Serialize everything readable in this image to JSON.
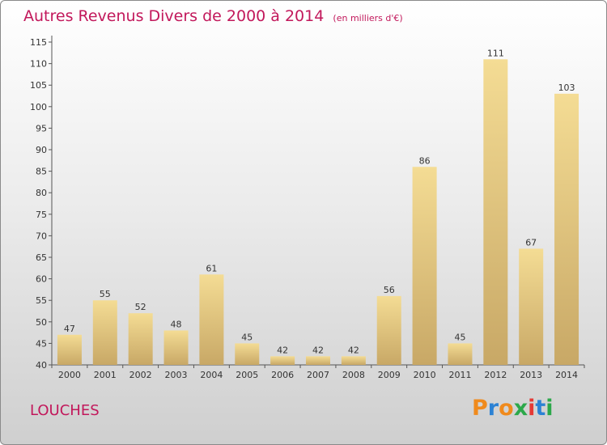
{
  "header": {
    "title": "Autres Revenus Divers de 2000 à 2014",
    "subtitle": "(en milliers d'€)"
  },
  "footer": {
    "place": "LOUCHES",
    "logo": "Proxiti"
  },
  "colors": {
    "title": "#c2185b",
    "bar_top": "#f4dc94",
    "bar_bottom": "#c8a866",
    "logo_letters": [
      "#f08a1c",
      "#2c82d4",
      "#f08a1c",
      "#2ca84a",
      "#e53935",
      "#2c82d4",
      "#2ca84a"
    ]
  },
  "chart_data": {
    "type": "bar",
    "title": "Autres Revenus Divers de 2000 à 2014",
    "subtitle": "(en milliers d'€)",
    "categories": [
      "2000",
      "2001",
      "2002",
      "2003",
      "2004",
      "2005",
      "2006",
      "2007",
      "2008",
      "2009",
      "2010",
      "2011",
      "2012",
      "2013",
      "2014"
    ],
    "values": [
      47,
      55,
      52,
      48,
      61,
      45,
      42,
      42,
      42,
      56,
      86,
      45,
      111,
      67,
      103
    ],
    "ylim": [
      40,
      115
    ],
    "yticks": [
      40,
      45,
      50,
      55,
      60,
      65,
      70,
      75,
      80,
      85,
      90,
      95,
      100,
      105,
      110,
      115
    ],
    "grid": false,
    "legend": "none"
  }
}
